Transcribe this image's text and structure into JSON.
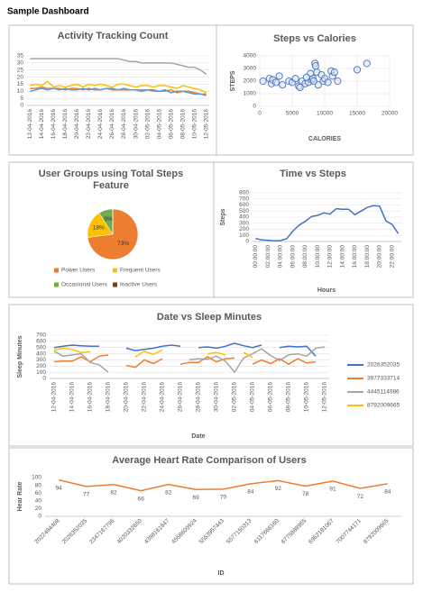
{
  "title": "Sample Dashboard",
  "chart_data": [
    {
      "type": "line",
      "title": "Activity Tracking Count",
      "grid": true,
      "ylim": [
        0,
        35
      ],
      "yticks": [
        0,
        5,
        10,
        15,
        20,
        25,
        30,
        35
      ],
      "categories": [
        "12-04-2016",
        null,
        "14-04-2016",
        null,
        "16-04-2016",
        null,
        "18-04-2016",
        null,
        "20-04-2016",
        null,
        "22-04-2016",
        null,
        "24-04-2016",
        null,
        "26-04-2016",
        null,
        "28-04-2016",
        null,
        "30-04-2016",
        null,
        "02-05-2016",
        null,
        "04-05-2016",
        null,
        "06-05-2016",
        null,
        "08-05-2016",
        null,
        "10-05-2016",
        null,
        "12-05-2016"
      ],
      "series": [
        {
          "color": "#a5a5a5",
          "values": [
            33,
            33,
            33,
            33,
            33,
            33,
            33,
            33,
            33,
            33,
            33,
            33,
            33,
            33,
            33,
            33,
            32,
            31,
            31,
            30,
            30,
            30,
            30,
            30,
            30,
            29,
            28,
            27,
            27,
            25,
            22
          ]
        },
        {
          "color": "#ffc000",
          "values": [
            14,
            15,
            14,
            17,
            13,
            14,
            13,
            14,
            15,
            13,
            15,
            14,
            15,
            14,
            13,
            15,
            15,
            14,
            13,
            14,
            14,
            13,
            14,
            14,
            13,
            12,
            14,
            13,
            12,
            11,
            9
          ]
        },
        {
          "color": "#ed7d31",
          "values": [
            12,
            12,
            13,
            12,
            12,
            12,
            11,
            12,
            12,
            11,
            12,
            11,
            11,
            12,
            11,
            11,
            11,
            11,
            11,
            11,
            11,
            10,
            10,
            10,
            11,
            9,
            10,
            10,
            9,
            8,
            8
          ]
        },
        {
          "color": "#5b9bd5",
          "values": [
            10,
            11,
            12,
            11,
            12,
            11,
            12,
            11,
            11,
            12,
            11,
            12,
            11,
            12,
            12,
            11,
            12,
            11,
            11,
            10,
            11,
            11,
            10,
            11,
            9,
            10,
            10,
            9,
            8,
            8,
            7
          ]
        }
      ]
    },
    {
      "type": "scatter",
      "title": "Steps vs Calories",
      "x_label": "CALORIES",
      "y_label": "STEPS",
      "grid": true,
      "color": "#4472c4",
      "xlim": [
        0,
        20000
      ],
      "xticks": [
        0,
        5000,
        10000,
        15000,
        20000
      ],
      "ylim": [
        0,
        4000
      ],
      "yticks": [
        0,
        1000,
        2000,
        3000,
        4000
      ],
      "x": [
        500,
        1500,
        1800,
        2000,
        2500,
        3000,
        3500,
        4500,
        5000,
        5500,
        6000,
        6200,
        6500,
        7000,
        7500,
        7800,
        8000,
        8200,
        8500,
        8600,
        8800,
        9000,
        9500,
        9800,
        10000,
        10500,
        11000,
        11200,
        11500,
        12000,
        15000,
        16500,
        7200,
        8300
      ],
      "y": [
        2000,
        2200,
        1800,
        2100,
        1900,
        2400,
        1700,
        2000,
        1900,
        2200,
        1600,
        1500,
        2000,
        1800,
        1900,
        2600,
        2100,
        2200,
        3400,
        3200,
        2700,
        1700,
        2500,
        2000,
        2200,
        1900,
        2800,
        2400,
        2700,
        2000,
        2900,
        3400,
        2300,
        2000
      ]
    },
    {
      "type": "pie",
      "title": "User Groups using Total Steps Feature",
      "categories": [
        "Power Users",
        "Frequent Users",
        "Occasional Users",
        "Inactive Users"
      ],
      "values": [
        73,
        18,
        9,
        0
      ],
      "value_labels": [
        "73%",
        "18%",
        "9%",
        null
      ],
      "colors": [
        "#ed7d31",
        "#ffc000",
        "#70ad47",
        "#843c0c"
      ]
    },
    {
      "type": "line",
      "title": "Time vs Steps",
      "x_label": "Hours",
      "y_label": "Steps",
      "grid": true,
      "ylim": [
        0,
        800
      ],
      "yticks": [
        0,
        100,
        200,
        300,
        400,
        500,
        600,
        700,
        800
      ],
      "categories": [
        "00:00:00",
        null,
        "02:00:00",
        null,
        "04:00:00",
        null,
        "06:00:00",
        null,
        "08:00:00",
        null,
        "10:00:00",
        null,
        "12:00:00",
        null,
        "14:00:00",
        null,
        "16:00:00",
        null,
        "18:00:00",
        null,
        "20:00:00",
        null,
        "22:00:00",
        null
      ],
      "series": [
        {
          "color": "#4472c4",
          "values": [
            50,
            25,
            20,
            10,
            15,
            45,
            170,
            270,
            330,
            410,
            430,
            470,
            450,
            540,
            530,
            530,
            440,
            500,
            560,
            590,
            580,
            340,
            280,
            130
          ]
        }
      ]
    },
    {
      "type": "line",
      "title": "Date vs Sleep Minutes",
      "x_label": "Date",
      "y_label": "Sleep Minutes",
      "grid": true,
      "ylim": [
        0,
        700
      ],
      "yticks": [
        0,
        100,
        200,
        300,
        400,
        500,
        600,
        700
      ],
      "categories": [
        "12-04-2016",
        null,
        "14-04-2016",
        null,
        "16-04-2016",
        null,
        "18-04-2016",
        null,
        "20-04-2016",
        null,
        "22-04-2016",
        null,
        "24-04-2016",
        null,
        "26-04-2016",
        null,
        "28-04-2016",
        null,
        "30-04-2016",
        null,
        "02-05-2016",
        null,
        "04-05-2016",
        null,
        "06-05-2016",
        null,
        "08-05-2016",
        null,
        "10-05-2016",
        null,
        "12-05-2016"
      ],
      "series": [
        {
          "name": "2026352035",
          "color": "#4472c4",
          "values": [
            500,
            520,
            540,
            530,
            520,
            520,
            null,
            null,
            490,
            450,
            470,
            490,
            520,
            540,
            520,
            null,
            500,
            510,
            490,
            520,
            570,
            530,
            500,
            540,
            null,
            500,
            520,
            510,
            520,
            360,
            null
          ]
        },
        {
          "name": "3977333714",
          "color": "#ed7d31",
          "values": [
            270,
            280,
            280,
            350,
            270,
            360,
            380,
            null,
            210,
            180,
            300,
            240,
            320,
            null,
            230,
            260,
            260,
            350,
            270,
            320,
            330,
            null,
            230,
            300,
            240,
            320,
            230,
            320,
            250,
            270,
            null
          ]
        },
        {
          "name": "4445114986",
          "color": "#a5a5a5",
          "values": [
            440,
            360,
            380,
            400,
            260,
            220,
            100,
            null,
            null,
            null,
            null,
            null,
            null,
            null,
            null,
            300,
            320,
            310,
            360,
            280,
            100,
            330,
            400,
            480,
            370,
            290,
            380,
            400,
            360,
            490,
            510
          ]
        },
        {
          "name": "8792009665",
          "color": "#ffc000",
          "values": [
            460,
            490,
            470,
            420,
            430,
            null,
            null,
            null,
            null,
            350,
            440,
            390,
            460,
            null,
            null,
            null,
            null,
            400,
            420,
            380,
            null,
            420,
            340,
            null,
            null,
            null,
            null,
            null,
            null,
            null,
            null
          ]
        }
      ]
    },
    {
      "type": "line",
      "title": "Average Heart Rate Comparison of Users",
      "x_label": "ID",
      "y_label": "Hear Rate",
      "grid": false,
      "data_labels": true,
      "ylim": [
        0,
        100
      ],
      "yticks": [
        0,
        20,
        40,
        60,
        80,
        100
      ],
      "categories": [
        "2022484408",
        "2026352035",
        "2347167796",
        "4020332650",
        "4388161847",
        "4558609924",
        "5553957443",
        "5577150313",
        "6117666160",
        "6775888955",
        "6962181067",
        "7007744171",
        "8792009665"
      ],
      "series": [
        {
          "color": "#ed7d31",
          "values": [
            94,
            77,
            82,
            66,
            82,
            69,
            70,
            84,
            92,
            78,
            91,
            72,
            84
          ]
        }
      ]
    }
  ]
}
